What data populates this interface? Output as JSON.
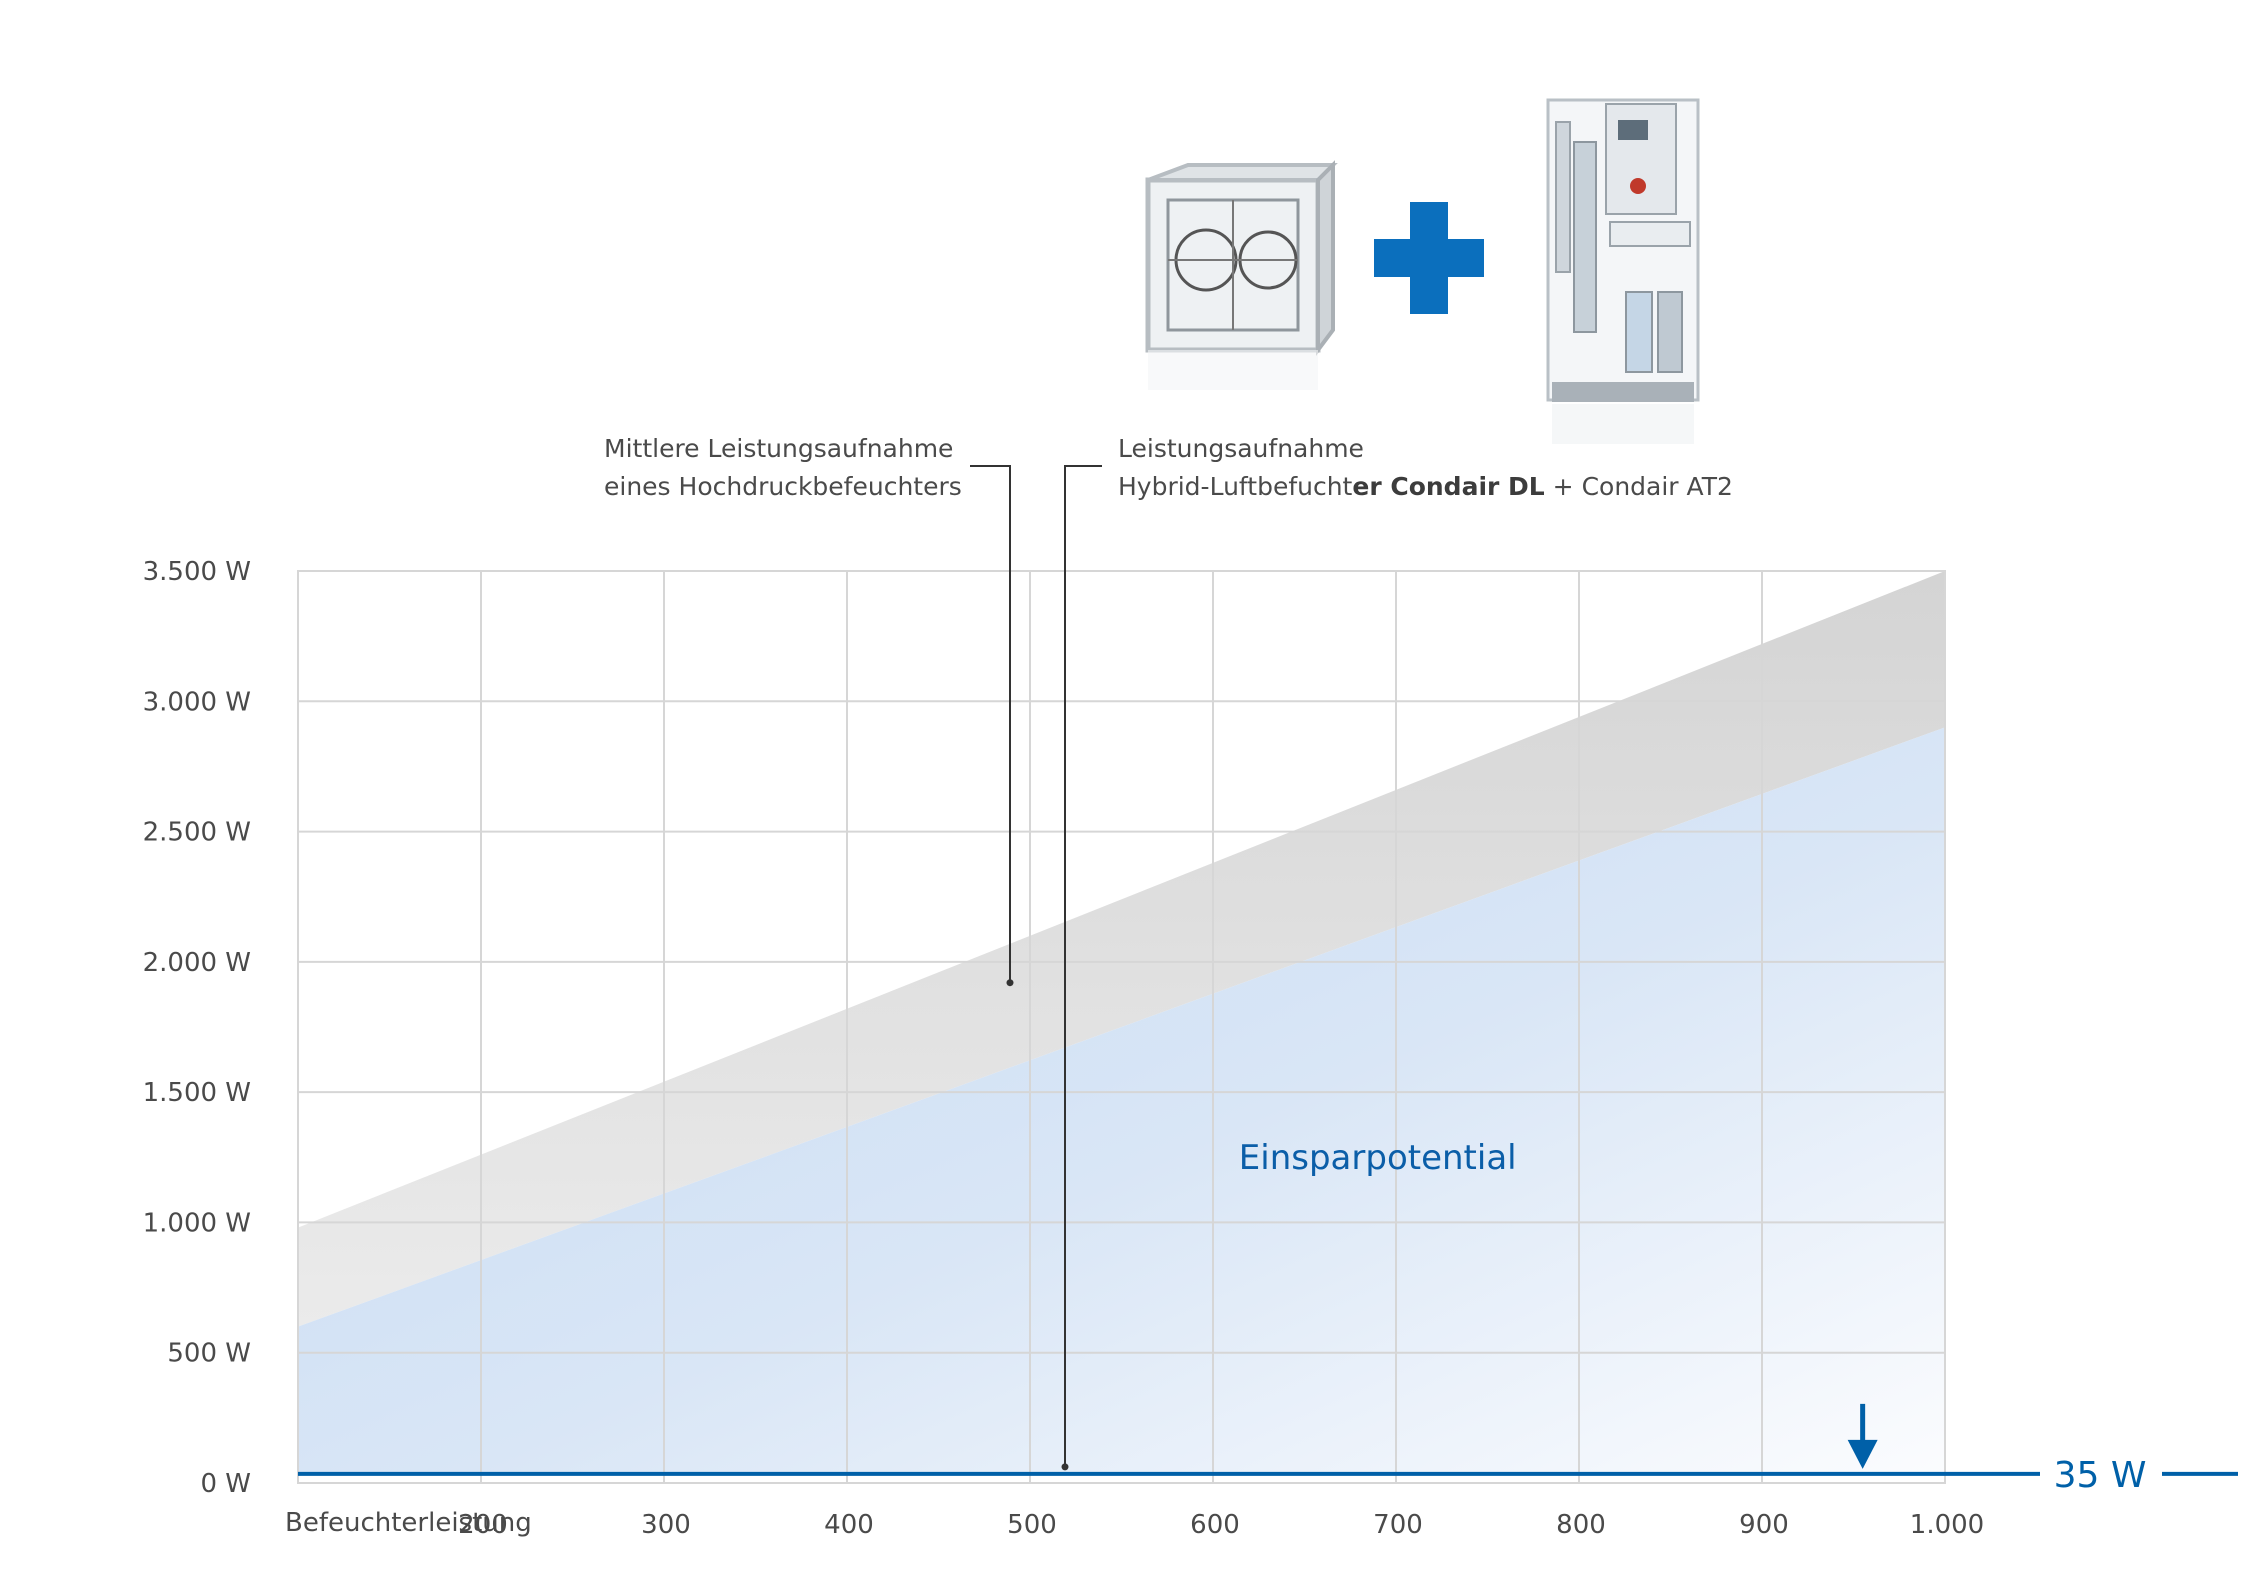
{
  "chart_data": {
    "type": "area",
    "x_start_label": "Befeuchterleistung",
    "x_ticks": [
      200,
      300,
      400,
      500,
      600,
      700,
      800,
      900,
      1000
    ],
    "x_tick_labels": [
      "200",
      "300",
      "400",
      "500",
      "600",
      "700",
      "800",
      "900",
      "1.000"
    ],
    "xlim": [
      100,
      1000
    ],
    "ylim": [
      0,
      3500
    ],
    "y_ticks": [
      0,
      500,
      1000,
      1500,
      2000,
      2500,
      3000,
      3500
    ],
    "y_tick_labels": [
      "0 W",
      "500 W",
      "1.000 W",
      "1.500 W",
      "2.000 W",
      "2.500 W",
      "3.000 W",
      "3.500 W"
    ],
    "grid": true,
    "series": [
      {
        "name": "Mittlere Leistungsaufnahme eines Hochdruckbefeuchters",
        "x": [
          100,
          1000
        ],
        "upper": [
          980,
          3500
        ],
        "lower": [
          600,
          2900
        ],
        "color": "#d9d9d9"
      },
      {
        "name": "Einsparpotential",
        "x": [
          100,
          1000
        ],
        "upper": [
          600,
          2900
        ],
        "lower": [
          35,
          35
        ],
        "color": "#c9dcf3"
      },
      {
        "name": "Leistungsaufnahme Hybrid-Luftbefuchter Condair DL + Condair AT2",
        "x": [
          100,
          1000
        ],
        "values": [
          35,
          35
        ],
        "color": "#0060a8"
      }
    ],
    "annotations": {
      "region_label": "Einsparpotential",
      "value_label": "35 W",
      "arrow_x": 955,
      "high_pressure": {
        "line1": "Mittlere Leistungsaufnahme",
        "line2": "eines Hochdruckbefeuchters",
        "point": [
          435,
          1920
        ]
      },
      "hybrid": {
        "line1": "Leistungsaufnahme",
        "line2_parts": [
          "Hybrid-Luftbefucht",
          "er Condair DL",
          " + Condair AT2"
        ],
        "point": [
          468,
          35
        ]
      }
    }
  },
  "products": {
    "left": "hybrid-humidifier-module",
    "plus_icon": "plus-icon",
    "right": "condair-at2-unit",
    "right_brand": "condair"
  },
  "colors": {
    "accent": "#0060a8",
    "grid": "#d6d6d6",
    "text": "#4a4a4a"
  }
}
